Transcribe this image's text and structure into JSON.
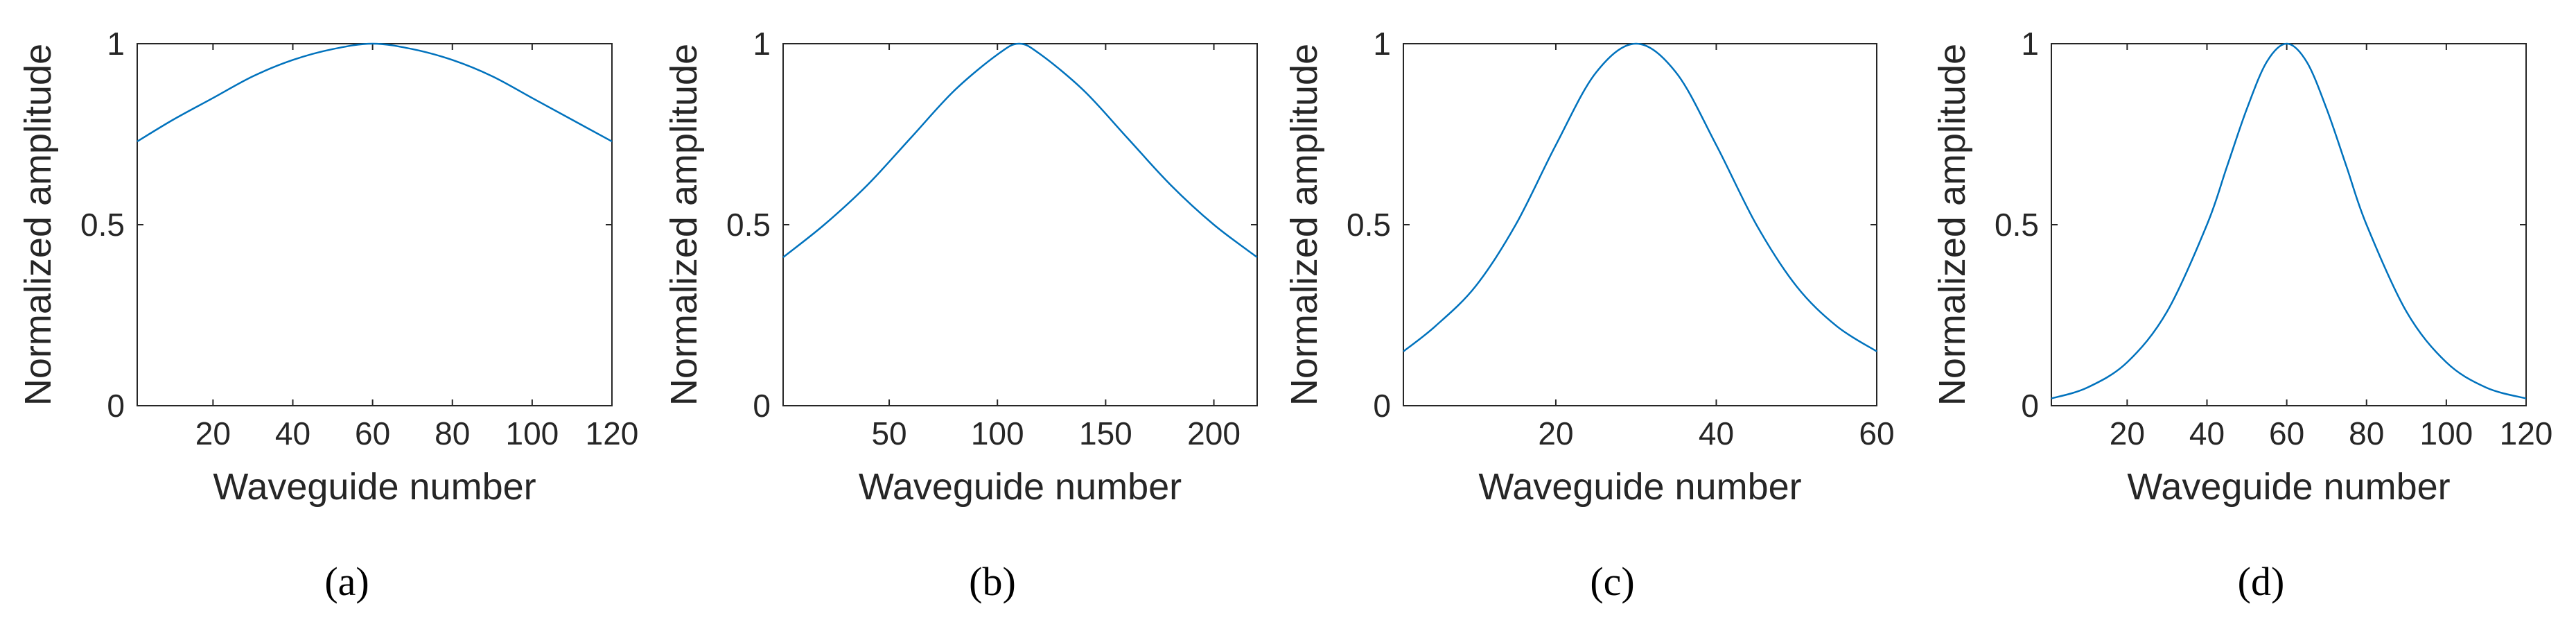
{
  "chart_data": [
    {
      "type": "line",
      "caption": "(a)",
      "xlabel": "Waveguide number",
      "ylabel": "Normalized amplitude",
      "xlim": [
        1,
        120
      ],
      "ylim": [
        0,
        1
      ],
      "xticks": [
        20,
        40,
        60,
        80,
        100,
        120
      ],
      "yticks": [
        0,
        0.5,
        1
      ],
      "ytick_labels": [
        "0",
        "0.5",
        "1"
      ],
      "series": [
        {
          "name": "amplitude",
          "x": [
            1,
            10,
            20,
            30,
            40,
            50,
            60,
            70,
            80,
            90,
            100,
            110,
            120
          ],
          "y": [
            0.73,
            0.79,
            0.85,
            0.91,
            0.955,
            0.985,
            1.0,
            0.985,
            0.955,
            0.91,
            0.85,
            0.79,
            0.73
          ]
        }
      ],
      "line_color": "#0072BD"
    },
    {
      "type": "line",
      "caption": "(b)",
      "xlabel": "Waveguide number",
      "ylabel": "Normalized amplitude",
      "xlim": [
        1,
        220
      ],
      "ylim": [
        0,
        1
      ],
      "xticks": [
        50,
        100,
        150,
        200
      ],
      "yticks": [
        0,
        0.5,
        1
      ],
      "ytick_labels": [
        "0",
        "0.5",
        "1"
      ],
      "series": [
        {
          "name": "amplitude",
          "x": [
            1,
            20,
            40,
            60,
            80,
            100,
            110,
            120,
            140,
            160,
            180,
            200,
            220
          ],
          "y": [
            0.41,
            0.5,
            0.61,
            0.74,
            0.87,
            0.97,
            1.0,
            0.97,
            0.87,
            0.74,
            0.61,
            0.5,
            0.41
          ]
        }
      ],
      "line_color": "#0072BD"
    },
    {
      "type": "line",
      "caption": "(c)",
      "xlabel": "Waveguide number",
      "ylabel": "Normalized amplitude",
      "xlim": [
        1,
        60
      ],
      "ylim": [
        0,
        1
      ],
      "xticks": [
        20,
        40,
        60
      ],
      "yticks": [
        0,
        0.5,
        1
      ],
      "ytick_labels": [
        "0",
        "0.5",
        "1"
      ],
      "series": [
        {
          "name": "amplitude",
          "x": [
            1,
            5,
            10,
            15,
            20,
            25,
            30,
            35,
            40,
            45,
            50,
            55,
            60
          ],
          "y": [
            0.15,
            0.22,
            0.33,
            0.5,
            0.72,
            0.92,
            1.0,
            0.92,
            0.72,
            0.5,
            0.33,
            0.22,
            0.15
          ]
        }
      ],
      "line_color": "#0072BD"
    },
    {
      "type": "line",
      "caption": "(d)",
      "xlabel": "Waveguide number",
      "ylabel": "Normalized amplitude",
      "xlim": [
        1,
        120
      ],
      "ylim": [
        0,
        1
      ],
      "xticks": [
        20,
        40,
        60,
        80,
        100,
        120
      ],
      "yticks": [
        0,
        0.5,
        1
      ],
      "ytick_labels": [
        "0",
        "0.5",
        "1"
      ],
      "series": [
        {
          "name": "amplitude",
          "x": [
            1,
            10,
            20,
            30,
            40,
            45,
            50,
            55,
            60,
            65,
            70,
            75,
            80,
            90,
            100,
            110,
            120
          ],
          "y": [
            0.02,
            0.05,
            0.12,
            0.26,
            0.5,
            0.66,
            0.82,
            0.95,
            1.0,
            0.95,
            0.82,
            0.66,
            0.5,
            0.26,
            0.12,
            0.05,
            0.02
          ]
        }
      ],
      "line_color": "#0072BD"
    }
  ]
}
